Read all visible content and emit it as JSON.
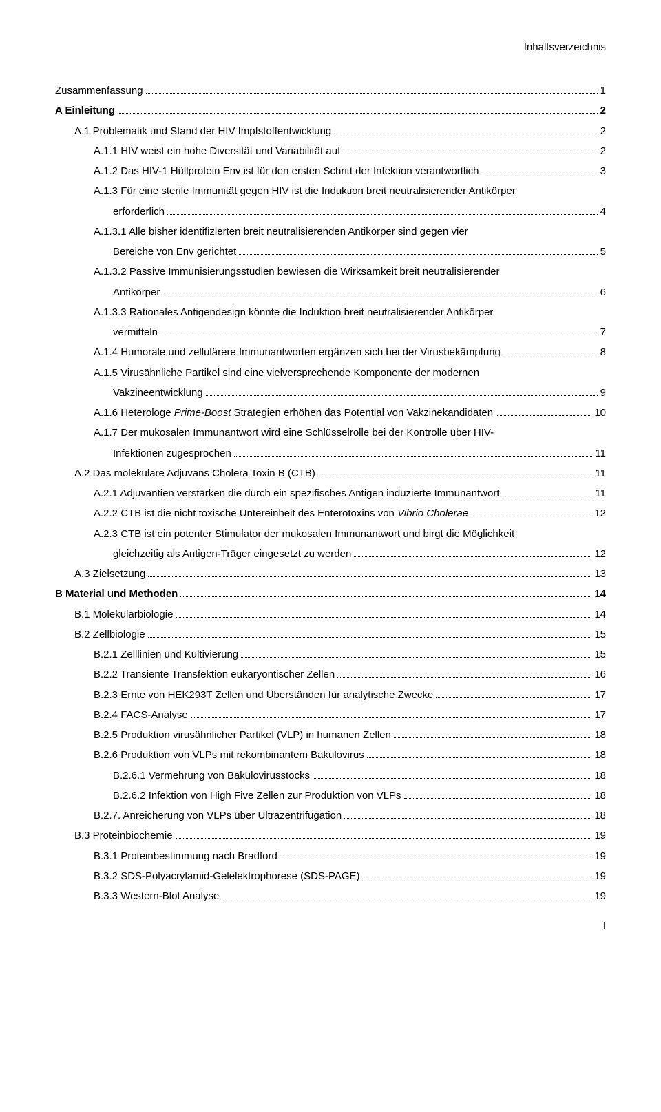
{
  "header": "Inhaltsverzeichnis",
  "footer": "I",
  "toc": [
    {
      "indent": 0,
      "bold": false,
      "lines": [
        "Zusammenfassung"
      ],
      "page": "1"
    },
    {
      "indent": 0,
      "bold": true,
      "lines": [
        "A Einleitung"
      ],
      "page": "2"
    },
    {
      "indent": 1,
      "bold": false,
      "lines": [
        "A.1 Problematik und Stand der HIV Impfstoffentwicklung"
      ],
      "page": "2"
    },
    {
      "indent": 2,
      "bold": false,
      "lines": [
        "A.1.1 HIV weist ein hohe Diversität und Variabilität auf"
      ],
      "page": "2"
    },
    {
      "indent": 2,
      "bold": false,
      "lines": [
        "A.1.2 Das HIV-1 Hüllprotein Env ist für den ersten Schritt der Infektion verantwortlich"
      ],
      "page": "3"
    },
    {
      "indent": 2,
      "bold": false,
      "lines": [
        "A.1.3 Für eine sterile Immunität gegen HIV ist die Induktion breit neutralisierender Antikörper",
        "erforderlich"
      ],
      "page": "4",
      "contIndent": 3
    },
    {
      "indent": 2,
      "bold": false,
      "lines": [
        "A.1.3.1 Alle bisher identifizierten breit neutralisierenden Antikörper sind gegen vier",
        "Bereiche von Env gerichtet"
      ],
      "page": "5",
      "contIndent": 3
    },
    {
      "indent": 2,
      "bold": false,
      "lines": [
        "A.1.3.2 Passive Immunisierungsstudien bewiesen die Wirksamkeit breit neutralisierender",
        "Antikörper"
      ],
      "page": "6",
      "contIndent": 3
    },
    {
      "indent": 2,
      "bold": false,
      "lines": [
        "A.1.3.3 Rationales Antigendesign könnte die Induktion breit neutralisierender Antikörper",
        "vermitteln"
      ],
      "page": "7",
      "contIndent": 3
    },
    {
      "indent": 2,
      "bold": false,
      "lines": [
        "A.1.4 Humorale und zellulärere Immunantworten ergänzen sich bei der Virusbekämpfung"
      ],
      "page": "8"
    },
    {
      "indent": 2,
      "bold": false,
      "lines": [
        "A.1.5 Virusähnliche Partikel sind eine vielversprechende Komponente der modernen",
        "Vakzineentwicklung"
      ],
      "page": "9",
      "contIndent": 3
    },
    {
      "indent": 2,
      "bold": false,
      "lines": [
        "A.1.6 Heterologe <i>Prime-Boost</i> Strategien erhöhen das Potential von Vakzinekandidaten"
      ],
      "page": "10"
    },
    {
      "indent": 2,
      "bold": false,
      "lines": [
        "A.1.7 Der mukosalen Immunantwort wird eine Schlüsselrolle bei der Kontrolle über HIV-",
        "Infektionen zugesprochen"
      ],
      "page": "11",
      "contIndent": 3
    },
    {
      "indent": 1,
      "bold": false,
      "lines": [
        "A.2 Das molekulare Adjuvans Cholera Toxin B (CTB)"
      ],
      "page": "11"
    },
    {
      "indent": 2,
      "bold": false,
      "lines": [
        "A.2.1 Adjuvantien verstärken die durch ein spezifisches Antigen induzierte Immunantwort"
      ],
      "page": "11"
    },
    {
      "indent": 2,
      "bold": false,
      "lines": [
        "A.2.2 CTB ist die nicht toxische Untereinheit des Enterotoxins von <i>Vibrio Cholerae</i>"
      ],
      "page": "12"
    },
    {
      "indent": 2,
      "bold": false,
      "lines": [
        "A.2.3 CTB ist ein potenter Stimulator der mukosalen Immunantwort und birgt die Möglichkeit",
        "gleichzeitig als Antigen-Träger eingesetzt zu werden"
      ],
      "page": "12",
      "contIndent": 3
    },
    {
      "indent": 1,
      "bold": false,
      "lines": [
        "A.3 Zielsetzung"
      ],
      "page": "13"
    },
    {
      "indent": 0,
      "bold": true,
      "lines": [
        "B Material und Methoden"
      ],
      "page": "14"
    },
    {
      "indent": 1,
      "bold": false,
      "lines": [
        "B.1 Molekularbiologie"
      ],
      "page": "14"
    },
    {
      "indent": 1,
      "bold": false,
      "lines": [
        "B.2 Zellbiologie"
      ],
      "page": "15"
    },
    {
      "indent": 2,
      "bold": false,
      "lines": [
        "B.2.1 Zelllinien und Kultivierung"
      ],
      "page": "15"
    },
    {
      "indent": 2,
      "bold": false,
      "lines": [
        "B.2.2 Transiente Transfektion eukaryontischer Zellen"
      ],
      "page": "16"
    },
    {
      "indent": 2,
      "bold": false,
      "lines": [
        "B.2.3 Ernte von HEK293T Zellen und Überständen für analytische Zwecke"
      ],
      "page": "17"
    },
    {
      "indent": 2,
      "bold": false,
      "lines": [
        "B.2.4 FACS-Analyse"
      ],
      "page": "17"
    },
    {
      "indent": 2,
      "bold": false,
      "lines": [
        "B.2.5 Produktion virusähnlicher Partikel (VLP) in humanen Zellen"
      ],
      "page": "18"
    },
    {
      "indent": 2,
      "bold": false,
      "lines": [
        "B.2.6 Produktion von VLPs mit rekombinantem Bakulovirus"
      ],
      "page": "18"
    },
    {
      "indent": 3,
      "bold": false,
      "lines": [
        "B.2.6.1 Vermehrung von Bakulovirusstocks"
      ],
      "page": "18"
    },
    {
      "indent": 3,
      "bold": false,
      "lines": [
        "B.2.6.2 Infektion von High Five Zellen zur Produktion von VLPs"
      ],
      "page": "18"
    },
    {
      "indent": 2,
      "bold": false,
      "lines": [
        "B.2.7. Anreicherung von VLPs über Ultrazentrifugation"
      ],
      "page": "18"
    },
    {
      "indent": 1,
      "bold": false,
      "lines": [
        "B.3 Proteinbiochemie"
      ],
      "page": "19"
    },
    {
      "indent": 2,
      "bold": false,
      "lines": [
        "B.3.1 Proteinbestimmung nach Bradford"
      ],
      "page": "19"
    },
    {
      "indent": 2,
      "bold": false,
      "lines": [
        "B.3.2 SDS-Polyacrylamid-Gelelektrophorese (SDS-PAGE)"
      ],
      "page": "19"
    },
    {
      "indent": 2,
      "bold": false,
      "lines": [
        "B.3.3 Western-Blot Analyse"
      ],
      "page": "19"
    }
  ]
}
